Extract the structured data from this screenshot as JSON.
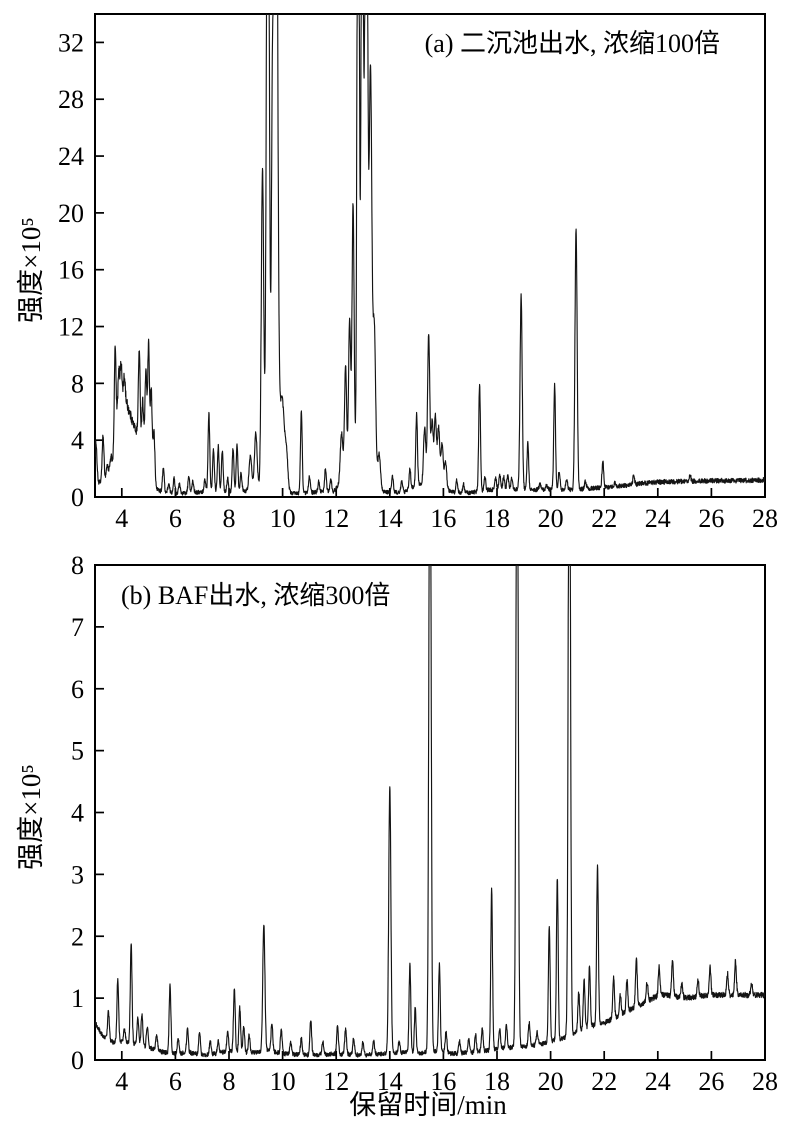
{
  "figure": {
    "x_axis_label": "保留时间/min",
    "background_color": "#ffffff",
    "trace_color": "#141414"
  },
  "chart_data": [
    {
      "panel": "a",
      "type": "line",
      "title": "(a) 二沉池出水, 浓缩100倍",
      "xlabel": "保留时间/min",
      "ylabel": "强度×10⁵",
      "xlim": [
        3,
        28
      ],
      "ylim": [
        0,
        34
      ],
      "x_ticks": [
        4,
        6,
        8,
        10,
        12,
        14,
        16,
        18,
        20,
        22,
        24,
        26,
        28
      ],
      "y_ticks": [
        0,
        4,
        8,
        12,
        16,
        20,
        24,
        28,
        32
      ],
      "grid": false,
      "legend": null,
      "line_color": "#141414",
      "noise_amplitude": 0.13,
      "note": "GC chromatogram; peaks listed as [retention_time_min, apex_intensity_x1e5, optional_half_width_min]. Apex values of 60 are off-scale peaks clipped at the top of the axis (9.4-9.8 min and 12.8-13.2 min clusters exceed 34).",
      "offscale_peaks_min": [
        9.45,
        9.75,
        12.82,
        12.97,
        13.12
      ],
      "baseline": [
        [
          3,
          0.5
        ],
        [
          3.1,
          0.9
        ],
        [
          3.4,
          1.4
        ],
        [
          3.55,
          2.0
        ],
        [
          3.7,
          2.7
        ],
        [
          3.9,
          7.0
        ],
        [
          4.05,
          7.3
        ],
        [
          4.2,
          6.5
        ],
        [
          4.35,
          5.6
        ],
        [
          4.5,
          4.8
        ],
        [
          4.65,
          4.3
        ],
        [
          4.8,
          3.9
        ],
        [
          4.95,
          3.3
        ],
        [
          5.05,
          2.7
        ],
        [
          5.15,
          1.7
        ],
        [
          5.3,
          0.6
        ],
        [
          5.5,
          0.35
        ],
        [
          6.1,
          0.25
        ],
        [
          6.6,
          0.3
        ],
        [
          7.0,
          0.35
        ],
        [
          7.5,
          0.4
        ],
        [
          8.0,
          0.35
        ],
        [
          8.6,
          0.4
        ],
        [
          9.1,
          0.6
        ],
        [
          9.9,
          1.0
        ],
        [
          10.1,
          0.4
        ],
        [
          10.4,
          0.25
        ],
        [
          11.0,
          0.3
        ],
        [
          11.9,
          0.4
        ],
        [
          12.1,
          0.8
        ],
        [
          12.4,
          1.2
        ],
        [
          13.0,
          1.5
        ],
        [
          13.5,
          0.8
        ],
        [
          13.75,
          0.35
        ],
        [
          14.5,
          0.3
        ],
        [
          15.1,
          0.9
        ],
        [
          15.5,
          1.3
        ],
        [
          15.9,
          1.1
        ],
        [
          16.2,
          0.45
        ],
        [
          16.45,
          0.3
        ],
        [
          17.0,
          0.3
        ],
        [
          17.7,
          0.5
        ],
        [
          18.2,
          0.55
        ],
        [
          19.4,
          0.5
        ],
        [
          20.1,
          0.55
        ],
        [
          20.8,
          0.5
        ],
        [
          21.5,
          0.6
        ],
        [
          22.2,
          0.7
        ],
        [
          22.8,
          0.8
        ],
        [
          23.4,
          0.95
        ],
        [
          24.0,
          1.05
        ],
        [
          25.0,
          1.1
        ],
        [
          26.0,
          1.15
        ],
        [
          27.0,
          1.15
        ],
        [
          28.0,
          1.2
        ]
      ],
      "peaks": [
        [
          3.03,
          3.9,
          0.04
        ],
        [
          3.3,
          4.3
        ],
        [
          3.45,
          2.2
        ],
        [
          3.6,
          2.8
        ],
        [
          3.75,
          10.6
        ],
        [
          3.88,
          8.6
        ],
        [
          3.97,
          9.4
        ],
        [
          4.1,
          8.4
        ],
        [
          4.65,
          10.4
        ],
        [
          4.78,
          6.8
        ],
        [
          4.9,
          9.0
        ],
        [
          5.0,
          10.8
        ],
        [
          5.1,
          7.6
        ],
        [
          5.2,
          4.6
        ],
        [
          5.55,
          2.1
        ],
        [
          5.75,
          0.9
        ],
        [
          5.95,
          1.3
        ],
        [
          6.15,
          0.9
        ],
        [
          6.5,
          1.4
        ],
        [
          6.65,
          1.1
        ],
        [
          7.1,
          1.2
        ],
        [
          7.25,
          5.9
        ],
        [
          7.42,
          3.3
        ],
        [
          7.6,
          3.6
        ],
        [
          7.75,
          3.3
        ],
        [
          7.95,
          1.3
        ],
        [
          8.15,
          3.4
        ],
        [
          8.3,
          3.7
        ],
        [
          8.45,
          1.7
        ],
        [
          8.8,
          2.9,
          0.05
        ],
        [
          9.0,
          4.5,
          0.05
        ],
        [
          9.25,
          23.2,
          0.045
        ],
        [
          9.45,
          60,
          0.05
        ],
        [
          9.62,
          26,
          0.04
        ],
        [
          9.75,
          60,
          0.06
        ],
        [
          9.98,
          7,
          0.09
        ],
        [
          10.15,
          2.5,
          0.05
        ],
        [
          10.7,
          6.0
        ],
        [
          11.0,
          1.5
        ],
        [
          11.35,
          1.1
        ],
        [
          11.6,
          2.0
        ],
        [
          11.8,
          1.2
        ],
        [
          12.2,
          4.5,
          0.05
        ],
        [
          12.35,
          9.2,
          0.04
        ],
        [
          12.5,
          12.5,
          0.04
        ],
        [
          12.63,
          20.6,
          0.04
        ],
        [
          12.82,
          60,
          0.04
        ],
        [
          12.97,
          55,
          0.04
        ],
        [
          13.12,
          60,
          0.05
        ],
        [
          13.28,
          30,
          0.05
        ],
        [
          13.42,
          12,
          0.05
        ],
        [
          13.6,
          3,
          0.05
        ],
        [
          14.1,
          1.5
        ],
        [
          14.45,
          1.2
        ],
        [
          14.75,
          2.0
        ],
        [
          15.0,
          5.8
        ],
        [
          15.3,
          4.9,
          0.04
        ],
        [
          15.45,
          11.5,
          0.04
        ],
        [
          15.58,
          5.3,
          0.04
        ],
        [
          15.7,
          5.7,
          0.04
        ],
        [
          15.82,
          4.9,
          0.04
        ],
        [
          15.95,
          3.7,
          0.04
        ],
        [
          16.08,
          2.5,
          0.04
        ],
        [
          16.5,
          1.2
        ],
        [
          16.75,
          0.9
        ],
        [
          17.35,
          7.9
        ],
        [
          17.55,
          1.4
        ],
        [
          17.95,
          1.3
        ],
        [
          18.1,
          1.6
        ],
        [
          18.25,
          1.4
        ],
        [
          18.4,
          1.5
        ],
        [
          18.55,
          1.3
        ],
        [
          18.9,
          14.2,
          0.04
        ],
        [
          19.15,
          3.8
        ],
        [
          19.6,
          0.9
        ],
        [
          19.85,
          0.8
        ],
        [
          20.15,
          7.9
        ],
        [
          20.32,
          1.8
        ],
        [
          20.6,
          1.2
        ],
        [
          20.95,
          18.8,
          0.04
        ],
        [
          21.3,
          1.1
        ],
        [
          21.95,
          2.55
        ],
        [
          22.4,
          1.0
        ],
        [
          23.1,
          1.5
        ],
        [
          23.5,
          0.8
        ],
        [
          25.2,
          1.55
        ],
        [
          26.3,
          0.6
        ]
      ]
    },
    {
      "panel": "b",
      "type": "line",
      "title": "(b) BAF出水, 浓缩300倍",
      "xlabel": "保留时间/min",
      "ylabel": "强度×10⁵",
      "xlim": [
        3,
        28
      ],
      "ylim": [
        0,
        8
      ],
      "x_ticks": [
        4,
        6,
        8,
        10,
        12,
        14,
        16,
        18,
        20,
        22,
        24,
        26,
        28
      ],
      "y_ticks": [
        0,
        1,
        2,
        3,
        4,
        5,
        6,
        7,
        8
      ],
      "grid": false,
      "legend": null,
      "line_color": "#141414",
      "noise_amplitude": 0.035,
      "note": "GC chromatogram; peaks listed as [retention_time_min, apex_intensity_x1e5, optional_half_width_min]. Apex values of 12 are off-scale peaks clipped at the top of the axis (15.5, 18.75 and 20.7 min exceed 8).",
      "offscale_peaks_min": [
        15.5,
        18.75,
        20.7
      ],
      "baseline": [
        [
          3,
          0.6
        ],
        [
          3.3,
          0.38
        ],
        [
          3.7,
          0.28
        ],
        [
          4.1,
          0.3
        ],
        [
          4.5,
          0.25
        ],
        [
          5,
          0.2
        ],
        [
          5.5,
          0.13
        ],
        [
          6,
          0.1
        ],
        [
          6.5,
          0.12
        ],
        [
          7,
          0.08
        ],
        [
          7.5,
          0.1
        ],
        [
          8,
          0.15
        ],
        [
          8.6,
          0.12
        ],
        [
          9.1,
          0.12
        ],
        [
          9.5,
          0.15
        ],
        [
          10,
          0.1
        ],
        [
          11,
          0.08
        ],
        [
          12,
          0.1
        ],
        [
          13,
          0.08
        ],
        [
          13.8,
          0.1
        ],
        [
          14.5,
          0.12
        ],
        [
          15,
          0.1
        ],
        [
          15.8,
          0.15
        ],
        [
          16.3,
          0.1
        ],
        [
          17,
          0.12
        ],
        [
          17.6,
          0.15
        ],
        [
          18,
          0.18
        ],
        [
          18.5,
          0.2
        ],
        [
          19,
          0.22
        ],
        [
          19.6,
          0.25
        ],
        [
          20,
          0.3
        ],
        [
          20.5,
          0.35
        ],
        [
          21,
          0.45
        ],
        [
          21.5,
          0.55
        ],
        [
          22,
          0.6
        ],
        [
          22.5,
          0.7
        ],
        [
          23,
          0.82
        ],
        [
          23.5,
          0.92
        ],
        [
          23.9,
          1.02
        ],
        [
          24.2,
          1.05
        ],
        [
          25,
          1.0
        ],
        [
          26,
          1.05
        ],
        [
          27,
          1.05
        ],
        [
          28,
          1.05
        ]
      ],
      "peaks": [
        [
          3.5,
          0.8
        ],
        [
          3.85,
          1.3
        ],
        [
          4.1,
          0.5
        ],
        [
          4.35,
          1.9
        ],
        [
          4.6,
          0.7
        ],
        [
          4.75,
          0.75
        ],
        [
          4.95,
          0.55
        ],
        [
          5.3,
          0.4
        ],
        [
          5.8,
          1.2
        ],
        [
          6.1,
          0.35
        ],
        [
          6.45,
          0.5
        ],
        [
          6.9,
          0.45
        ],
        [
          7.3,
          0.3
        ],
        [
          7.6,
          0.3
        ],
        [
          7.95,
          0.45
        ],
        [
          8.2,
          1.15
        ],
        [
          8.4,
          0.85
        ],
        [
          8.55,
          0.55
        ],
        [
          8.75,
          0.4
        ],
        [
          9.3,
          2.2,
          0.04
        ],
        [
          9.6,
          0.6
        ],
        [
          9.95,
          0.5
        ],
        [
          10.3,
          0.3
        ],
        [
          10.7,
          0.35
        ],
        [
          11.05,
          0.65
        ],
        [
          11.5,
          0.3
        ],
        [
          12.05,
          0.55
        ],
        [
          12.35,
          0.5
        ],
        [
          12.65,
          0.35
        ],
        [
          13.0,
          0.3
        ],
        [
          13.4,
          0.3
        ],
        [
          14.0,
          4.45,
          0.04
        ],
        [
          14.35,
          0.3
        ],
        [
          14.75,
          1.55
        ],
        [
          14.95,
          0.85
        ],
        [
          15.5,
          12,
          0.04
        ],
        [
          15.85,
          1.55
        ],
        [
          16.1,
          0.45
        ],
        [
          16.6,
          0.3
        ],
        [
          16.95,
          0.35
        ],
        [
          17.2,
          0.4
        ],
        [
          17.45,
          0.5
        ],
        [
          17.8,
          2.75
        ],
        [
          18.1,
          0.5
        ],
        [
          18.35,
          0.55
        ],
        [
          18.75,
          12,
          0.04
        ],
        [
          19.2,
          0.6
        ],
        [
          19.5,
          0.45
        ],
        [
          19.95,
          2.15
        ],
        [
          20.25,
          2.95
        ],
        [
          20.7,
          12,
          0.04
        ],
        [
          21.05,
          1.1
        ],
        [
          21.25,
          1.3
        ],
        [
          21.45,
          1.5
        ],
        [
          21.75,
          3.15
        ],
        [
          22.35,
          1.35
        ],
        [
          22.6,
          1.05
        ],
        [
          22.85,
          1.3
        ],
        [
          23.2,
          1.65
        ],
        [
          23.6,
          1.25
        ],
        [
          24.05,
          1.5
        ],
        [
          24.55,
          1.65
        ],
        [
          24.9,
          1.25
        ],
        [
          25.5,
          1.3
        ],
        [
          25.95,
          1.5
        ],
        [
          26.6,
          1.4
        ],
        [
          26.9,
          1.6
        ],
        [
          27.5,
          1.25
        ]
      ]
    }
  ]
}
